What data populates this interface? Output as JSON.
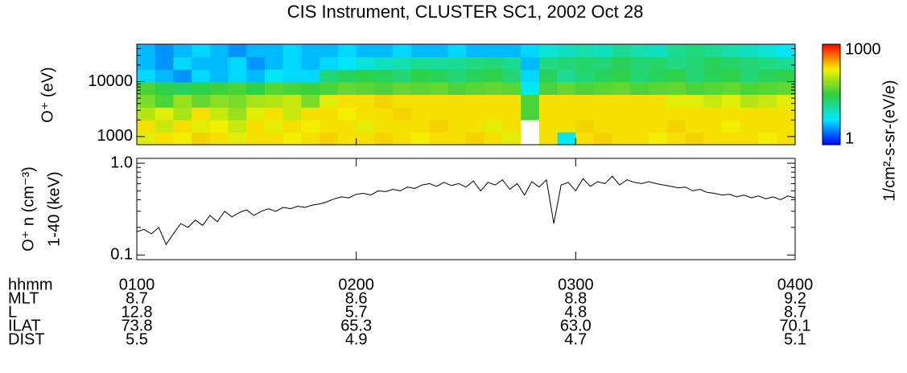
{
  "chart_data": [
    {
      "type": "heatmap",
      "title": "CIS Instrument, CLUSTER SC1, 2002 Oct 28",
      "ylabel": "O⁺ (eV)",
      "xlim": [
        60,
        240
      ],
      "ylim": [
        710,
        48000
      ],
      "ylog": true,
      "yticks": [
        1000,
        10000
      ],
      "minor_yticks": [
        2000,
        3000,
        4000,
        5000,
        6000,
        7000,
        8000,
        9000,
        20000,
        30000,
        40000
      ],
      "x_edges": [
        60,
        65,
        70,
        75,
        80,
        85,
        90,
        95,
        100,
        105,
        110,
        115,
        120,
        125,
        130,
        135,
        140,
        145,
        150,
        155,
        160,
        165,
        170,
        175,
        180,
        185,
        190,
        195,
        200,
        205,
        210,
        215,
        220,
        225,
        230,
        235,
        240
      ],
      "y_edges": [
        710,
        1200,
        2000,
        3400,
        5800,
        9800,
        16600,
        28200,
        48000
      ],
      "z": [
        [
          150,
          200,
          180,
          220,
          200,
          150,
          200,
          200,
          180,
          200,
          220,
          200,
          200,
          220,
          200,
          180,
          200,
          200,
          220,
          200,
          150,
          null,
          200,
          6,
          200,
          220,
          200,
          200,
          180,
          200,
          220,
          200,
          200,
          200,
          180,
          200
        ],
        [
          200,
          120,
          200,
          150,
          180,
          120,
          200,
          150,
          200,
          180,
          200,
          200,
          150,
          200,
          200,
          200,
          220,
          200,
          200,
          150,
          200,
          null,
          200,
          200,
          220,
          200,
          200,
          200,
          200,
          220,
          200,
          200,
          180,
          200,
          200,
          200
        ],
        [
          100,
          150,
          90,
          200,
          120,
          80,
          150,
          200,
          120,
          200,
          200,
          180,
          200,
          200,
          220,
          200,
          200,
          200,
          200,
          200,
          200,
          40,
          200,
          200,
          200,
          200,
          200,
          200,
          200,
          200,
          200,
          200,
          200,
          200,
          200,
          200
        ],
        [
          60,
          40,
          80,
          50,
          70,
          60,
          90,
          100,
          120,
          60,
          150,
          200,
          200,
          220,
          200,
          200,
          200,
          200,
          200,
          200,
          200,
          40,
          200,
          200,
          200,
          200,
          200,
          200,
          200,
          150,
          150,
          120,
          150,
          100,
          120,
          150
        ],
        [
          40,
          30,
          25,
          30,
          35,
          40,
          30,
          45,
          40,
          35,
          40,
          50,
          45,
          40,
          50,
          45,
          50,
          40,
          45,
          50,
          45,
          6,
          40,
          50,
          40,
          45,
          50,
          40,
          45,
          50,
          40,
          45,
          50,
          40,
          45,
          50
        ],
        [
          5,
          4,
          3,
          5,
          4,
          5,
          4,
          6,
          5,
          5,
          20,
          25,
          30,
          25,
          20,
          30,
          25,
          20,
          25,
          30,
          20,
          5,
          25,
          15,
          20,
          25,
          30,
          20,
          25,
          30,
          20,
          25,
          30,
          20,
          25,
          30
        ],
        [
          4,
          3,
          5,
          4,
          4,
          5,
          3,
          4,
          5,
          4,
          5,
          6,
          8,
          10,
          12,
          15,
          14,
          15,
          18,
          20,
          15,
          4,
          18,
          20,
          22,
          20,
          25,
          20,
          22,
          18,
          20,
          25,
          22,
          20,
          18,
          15
        ],
        [
          4,
          3,
          4,
          5,
          4,
          3,
          4,
          4,
          5,
          4,
          4,
          5,
          4,
          4,
          5,
          4,
          4,
          5,
          4,
          4,
          4,
          5,
          8,
          10,
          12,
          10,
          15,
          12,
          10,
          15,
          18,
          15,
          12,
          10,
          8,
          6
        ]
      ],
      "zlim": [
        1,
        1000
      ],
      "zticks": [
        1,
        1000
      ],
      "zlabel": "1/cm²-s-sr-(eV/e)",
      "colormap": [
        "#0000ff",
        "#00e8ff",
        "#30d040",
        "#f4f000",
        "#ff0000"
      ]
    },
    {
      "type": "line",
      "ylabel": [
        "O⁺ n (cm⁻³)",
        "1-40 (keV)"
      ],
      "xlabel": "hhmm",
      "xlim": [
        60,
        240
      ],
      "xticks": [
        {
          "value": 60,
          "label": "0100"
        },
        {
          "value": 120,
          "label": "0200"
        },
        {
          "value": 180,
          "label": "0300"
        },
        {
          "value": 240,
          "label": "0400"
        }
      ],
      "ylim": [
        0.089,
        1.13
      ],
      "ylog": true,
      "yticks": [
        0.1,
        {
          "value": 1,
          "label": "1.0"
        }
      ],
      "minor_yticks": [
        0.2,
        0.3,
        0.4,
        0.5,
        0.6,
        0.7,
        0.8,
        0.9
      ],
      "color": "#000000",
      "x": [
        60,
        62,
        64,
        66,
        68,
        70,
        72,
        74,
        76,
        78,
        80,
        82,
        84,
        86,
        88,
        90,
        92,
        94,
        96,
        98,
        100,
        102,
        104,
        106,
        108,
        110,
        112,
        114,
        116,
        118,
        120,
        122,
        124,
        126,
        128,
        130,
        132,
        134,
        136,
        138,
        140,
        142,
        144,
        146,
        148,
        150,
        152,
        154,
        156,
        158,
        160,
        162,
        164,
        166,
        168,
        170,
        172,
        174,
        176,
        178,
        180,
        182,
        184,
        186,
        188,
        190,
        192,
        194,
        196,
        198,
        200,
        202,
        204,
        206,
        208,
        210,
        212,
        214,
        216,
        218,
        220,
        222,
        224,
        226,
        228,
        230,
        232,
        234,
        236,
        238,
        240
      ],
      "values": [
        0.18,
        0.19,
        0.17,
        0.2,
        0.13,
        0.17,
        0.22,
        0.2,
        0.24,
        0.21,
        0.27,
        0.23,
        0.3,
        0.26,
        0.29,
        0.31,
        0.27,
        0.3,
        0.32,
        0.3,
        0.33,
        0.32,
        0.34,
        0.33,
        0.35,
        0.36,
        0.38,
        0.41,
        0.43,
        0.42,
        0.46,
        0.47,
        0.45,
        0.5,
        0.49,
        0.52,
        0.5,
        0.55,
        0.53,
        0.58,
        0.6,
        0.56,
        0.62,
        0.57,
        0.6,
        0.55,
        0.64,
        0.5,
        0.62,
        0.58,
        0.66,
        0.52,
        0.6,
        0.45,
        0.63,
        0.55,
        0.66,
        0.22,
        0.58,
        0.62,
        0.5,
        0.68,
        0.56,
        0.63,
        0.6,
        0.72,
        0.58,
        0.66,
        0.62,
        0.6,
        0.63,
        0.6,
        0.58,
        0.56,
        0.54,
        0.55,
        0.5,
        0.52,
        0.48,
        0.47,
        0.45,
        0.46,
        0.43,
        0.45,
        0.42,
        0.44,
        0.41,
        0.43,
        0.4,
        0.44,
        0.42
      ],
      "ephemeris": [
        {
          "name": "MLT",
          "values": [
            "8.7",
            "8.6",
            "8.8",
            "9.2"
          ]
        },
        {
          "name": "L",
          "values": [
            "12.8",
            "5.7",
            "4.8",
            "8.7"
          ]
        },
        {
          "name": "ILAT",
          "values": [
            "73.8",
            "65.3",
            "63.0",
            "70.1"
          ]
        },
        {
          "name": "DIST",
          "values": [
            "5.5",
            "4.9",
            "4.7",
            "5.1"
          ]
        }
      ]
    }
  ]
}
